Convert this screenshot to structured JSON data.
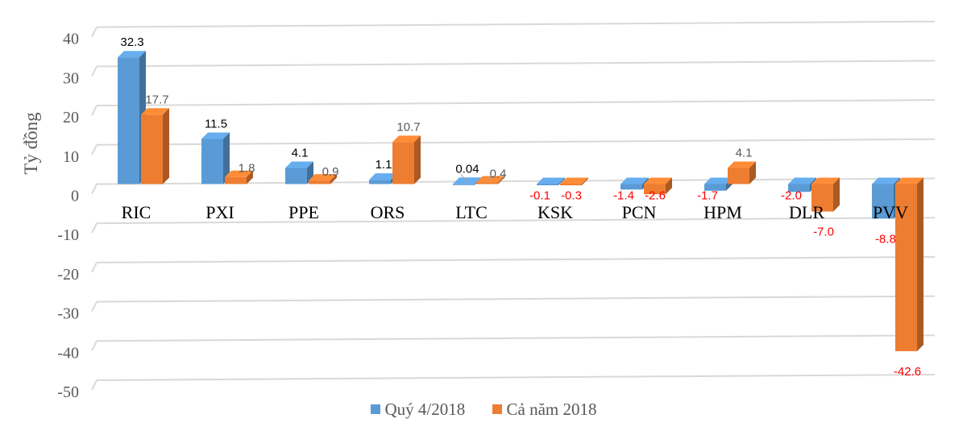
{
  "chart_data": {
    "type": "bar",
    "style": "3d-clustered-column",
    "title": "",
    "ylabel": "Tỷ đồng",
    "xlabel": "",
    "ylim": [
      -50,
      40
    ],
    "yticks": [
      "40",
      "30",
      "20",
      "10",
      "0",
      "-10",
      "-20",
      "-30",
      "-40",
      "-50"
    ],
    "grid": true,
    "legend_position": "bottom",
    "categories": [
      "RIC",
      "PXI",
      "PPE",
      "ORS",
      "LTC",
      "KSK",
      "PCN",
      "HPM",
      "DLR",
      "PVV"
    ],
    "series": [
      {
        "name": "Quý 4/2018",
        "color": "#5B9BD5",
        "values": [
          32.3,
          11.5,
          4.1,
          1.1,
          0.04,
          -0.1,
          -1.4,
          -1.7,
          -2.0,
          -8.8
        ],
        "labels": [
          "32.3",
          "11.5",
          "4.1",
          "1.1",
          "0.04",
          "-0.1",
          "-1.4",
          "-1.7",
          "-2.0",
          "-8.8"
        ]
      },
      {
        "name": "Cả năm 2018",
        "color": "#ED7D31",
        "values": [
          17.7,
          1.8,
          0.9,
          10.7,
          0.4,
          -0.3,
          -2.6,
          4.1,
          -7.0,
          -42.6
        ],
        "labels": [
          "17.7",
          "1.8",
          "0.9",
          "10.7",
          "0.4",
          "-0.3",
          "-2.6",
          "4.1",
          "-7.0",
          "-42.6"
        ]
      }
    ],
    "label_colors": {
      "positive_q4": "#000000",
      "positive_year": "#595959",
      "negative": "#FF0000"
    }
  }
}
